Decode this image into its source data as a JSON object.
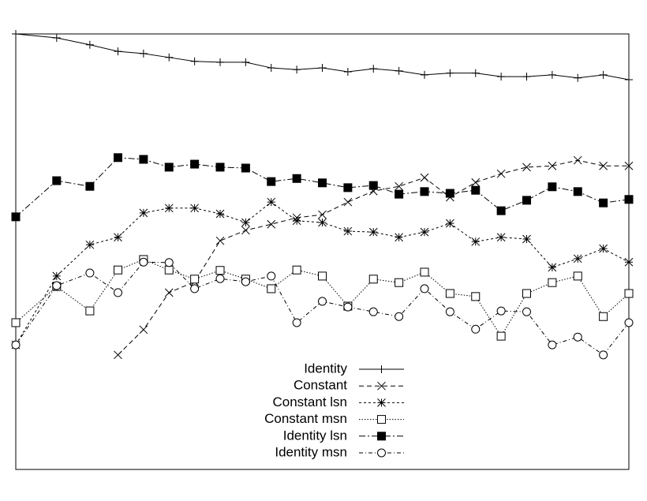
{
  "chart_data": {
    "type": "line",
    "x": [
      0,
      1.6,
      2.9,
      4,
      5,
      6,
      7,
      8,
      9,
      10,
      11,
      12,
      13,
      14,
      15,
      16,
      17,
      18,
      19,
      20,
      21,
      22,
      23,
      24
    ],
    "xlim": [
      0,
      24
    ],
    "ylim": [
      0,
      100
    ],
    "legend": "bottom-center",
    "series": [
      {
        "name": "Identity",
        "color": "#000000",
        "dash": "none",
        "marker": "plus",
        "values": [
          100,
          99.1,
          97.5,
          96.0,
          95.5,
          94.6,
          93.7,
          93.5,
          93.5,
          92.2,
          91.8,
          92.2,
          91.3,
          92.0,
          91.5,
          90.6,
          91.0,
          91.0,
          90.2,
          90.2,
          90.6,
          89.9,
          90.6,
          89.5
        ]
      },
      {
        "name": "Constant",
        "color": "#000000",
        "dash": "6,4",
        "marker": "cross",
        "values": [
          null,
          null,
          null,
          26.3,
          32.1,
          40.6,
          43.1,
          52.5,
          54.9,
          56.3,
          57.8,
          58.5,
          61.4,
          63.9,
          65.0,
          67.0,
          62.5,
          65.9,
          67.9,
          69.4,
          69.7,
          71.0,
          69.7,
          69.7
        ]
      },
      {
        "name": "Constant lsn",
        "color": "#000000",
        "dash": "3,3",
        "marker": "star",
        "values": [
          28.6,
          44.4,
          51.6,
          53.3,
          58.9,
          60.0,
          60.0,
          58.7,
          56.7,
          61.4,
          57.1,
          56.7,
          54.7,
          54.5,
          53.3,
          54.5,
          56.5,
          52.3,
          53.3,
          52.9,
          46.4,
          48.4,
          50.7,
          47.6
        ]
      },
      {
        "name": "Constant msn",
        "color": "#000000",
        "dash": "1.5,2",
        "marker": "square",
        "values": [
          33.7,
          42.0,
          36.4,
          45.8,
          48.2,
          45.8,
          43.7,
          45.7,
          43.7,
          41.5,
          45.8,
          44.4,
          37.5,
          43.7,
          42.9,
          45.3,
          40.4,
          39.7,
          30.6,
          40.4,
          42.9,
          44.4,
          35.1,
          40.4
        ]
      },
      {
        "name": "Identity lsn",
        "color": "#000000",
        "dash": "8,3,2,3",
        "marker": "filled-square",
        "values": [
          58.0,
          66.3,
          65.0,
          71.6,
          71.2,
          69.4,
          70.1,
          69.4,
          69.2,
          66.1,
          66.8,
          65.8,
          64.7,
          65.2,
          63.2,
          63.8,
          63.4,
          64.1,
          59.4,
          61.8,
          64.9,
          63.8,
          61.2,
          62.0
        ]
      },
      {
        "name": "Identity msn",
        "color": "#000000",
        "dash": "5,3,1,3",
        "marker": "circle",
        "values": [
          28.6,
          42.2,
          45.1,
          40.6,
          47.6,
          47.5,
          41.5,
          43.8,
          43.1,
          44.4,
          33.7,
          38.6,
          37.3,
          36.2,
          35.1,
          41.5,
          36.2,
          32.2,
          36.4,
          36.2,
          28.6,
          30.4,
          26.3,
          33.7
        ]
      }
    ]
  }
}
